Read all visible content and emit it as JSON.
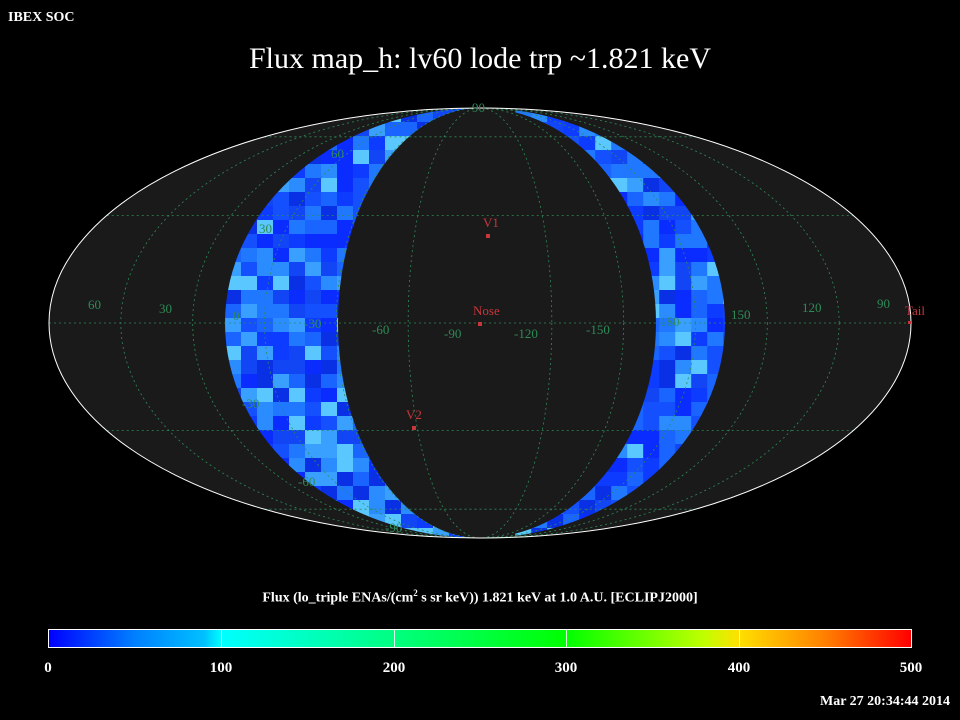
{
  "header": {
    "org": "IBEX SOC"
  },
  "title": "Flux   map_h: lv60 lode trp ~1.821 keV",
  "colorbar": {
    "title_prefix": "Flux (lo_triple ENAs/(cm",
    "title_sup": "2",
    "title_suffix": " s sr keV))  1.821 keV at 1.0 A.U. [ECLIPJ2000]",
    "labels": [
      "0",
      "100",
      "200",
      "300",
      "400",
      "500"
    ],
    "min": 0,
    "max": 500
  },
  "timestamp": "Mar 27 20:34:44 2014",
  "map": {
    "projection": "Mollweide",
    "background_color": "#1a1a1a",
    "grid_color": "#2e8b57",
    "marker_color": "#c8373c",
    "longitude_labels": [
      "60",
      "30",
      "0",
      "-30",
      "-60",
      "-90",
      "-120",
      "-150",
      "180",
      "150",
      "120",
      "90"
    ],
    "latitude_labels": [
      "90",
      "60",
      "30",
      "30",
      "-30",
      "-60",
      "-90"
    ],
    "markers": [
      {
        "label": "V1"
      },
      {
        "label": "Nose"
      },
      {
        "label": "V2"
      },
      {
        "label": "Tail"
      }
    ]
  }
}
